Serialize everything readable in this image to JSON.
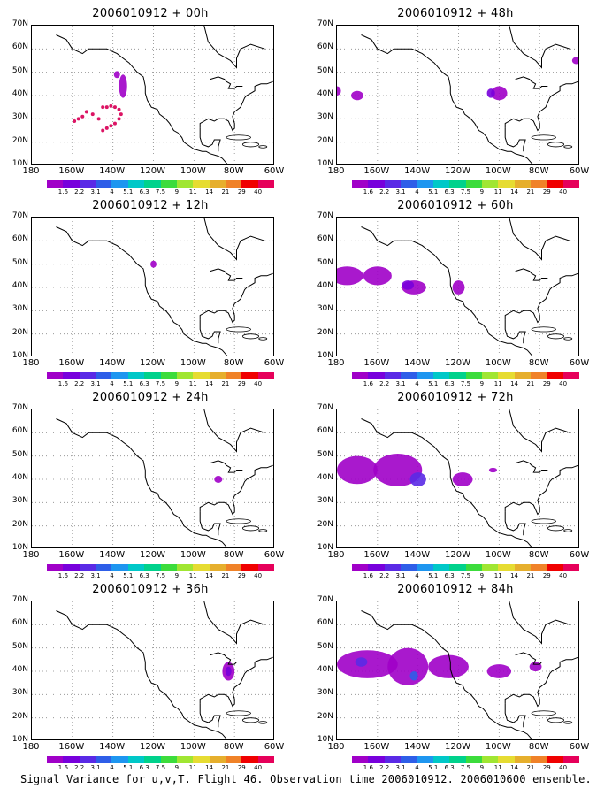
{
  "panels": [
    {
      "title": "2006010912 + 00h"
    },
    {
      "title": "2006010912 + 48h"
    },
    {
      "title": "2006010912 + 12h"
    },
    {
      "title": "2006010912 + 60h"
    },
    {
      "title": "2006010912 + 24h"
    },
    {
      "title": "2006010912 + 72h"
    },
    {
      "title": "2006010912 + 36h"
    },
    {
      "title": "2006010912 + 84h"
    }
  ],
  "lat_labels": [
    "70N",
    "60N",
    "50N",
    "40N",
    "30N",
    "20N",
    "10N"
  ],
  "lon_labels": [
    "180",
    "160W",
    "140W",
    "120W",
    "100W",
    "80W",
    "60W"
  ],
  "colorbar": {
    "labels": [
      "1.6",
      "2.2",
      "3.1",
      "4",
      "5.1",
      "6.3",
      "7.5",
      "9",
      "11",
      "14",
      "21",
      "29",
      "40"
    ],
    "colors": [
      "#a000c8",
      "#7800dc",
      "#5a2ae6",
      "#2e5ee8",
      "#1e96f0",
      "#00c8c8",
      "#00d28c",
      "#3cdc3c",
      "#a0e632",
      "#e6dc32",
      "#e6af2d",
      "#f08228",
      "#f00000",
      "#e6005a"
    ]
  },
  "footer": "Signal Variance for u,v,T. Flight 46. Observation time 2006010912. 2006010600 ensemble."
}
